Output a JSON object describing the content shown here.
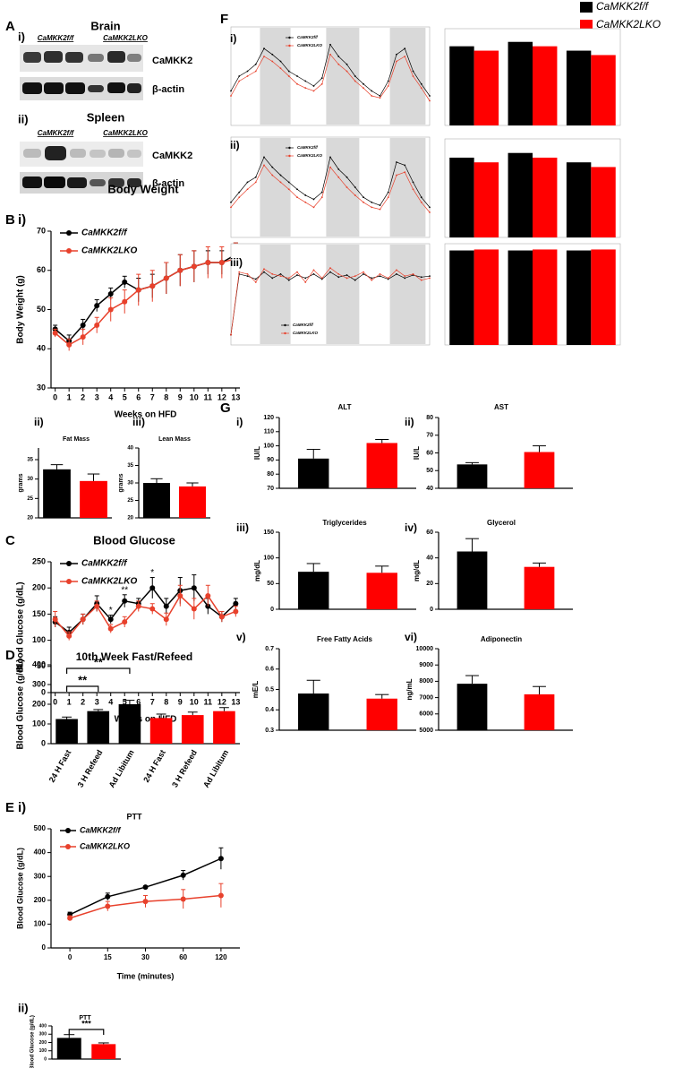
{
  "figure_labels": [
    "A",
    "B",
    "C",
    "D",
    "E",
    "F",
    "G"
  ],
  "figure_legend": [
    {
      "name": "CaMKK2f/f",
      "color": "#000000"
    },
    {
      "name": "CaMKK2LKO",
      "color": "#ff0000"
    }
  ],
  "blots": [
    {
      "panel": "i)",
      "title": "Brain",
      "groups": [
        "CaMKK2f/f",
        "CaMKK2LKO"
      ],
      "rows": [
        "CaMKK2",
        "β-actin"
      ]
    },
    {
      "panel": "ii)",
      "title": "Spleen",
      "groups": [
        "CaMKK2f/f",
        "CaMKK2LKO"
      ],
      "rows": [
        "CaMKK2",
        "β-actin"
      ]
    }
  ],
  "chart_data": [
    {
      "type": "line",
      "panel": "i)",
      "title": "Body Weight",
      "xlabel": "Weeks on HFD",
      "ylabel": "Body Weight (g)",
      "x": [
        0,
        1,
        2,
        3,
        4,
        5,
        6,
        7,
        8,
        9,
        10,
        11,
        12,
        13
      ],
      "xlim": [
        -0.3,
        13.3
      ],
      "xticks": [
        0,
        1,
        2,
        3,
        4,
        5,
        6,
        7,
        8,
        9,
        10,
        11,
        12,
        13
      ],
      "ylim": [
        30,
        70
      ],
      "yticks": [
        30,
        40,
        50,
        60,
        70
      ],
      "legend": "upper left",
      "series": [
        {
          "name": "CaMKK2f/f",
          "color": "#000000",
          "values": [
            45,
            42,
            46,
            51,
            54,
            57,
            55,
            56,
            58,
            60,
            61,
            62,
            62,
            64
          ],
          "errors": [
            1,
            1.5,
            1.5,
            1.5,
            1.5,
            1.5,
            3,
            3,
            4,
            4,
            4,
            3,
            3,
            3
          ]
        },
        {
          "name": "CaMKK2LKO",
          "color": "#e8412c",
          "values": [
            44,
            41,
            43,
            46,
            50,
            52,
            55,
            56,
            58,
            60,
            61,
            62,
            62,
            63
          ],
          "errors": [
            1,
            1.5,
            2,
            2,
            3,
            3,
            4,
            4,
            4,
            4,
            4,
            4,
            4,
            4
          ]
        }
      ]
    },
    {
      "type": "bar",
      "panel": "ii)",
      "title": "Fat Mass",
      "ylabel": "grams",
      "categories": [
        null,
        null
      ],
      "values": [
        32.5,
        29.5
      ],
      "errors": [
        1.2,
        1.8
      ],
      "colors": [
        "#000000",
        "#ff0000"
      ],
      "ylim": [
        20,
        38
      ],
      "yticks": [
        20,
        25,
        30,
        35
      ]
    },
    {
      "type": "bar",
      "panel": "iii)",
      "title": "Lean Mass",
      "ylabel": "grams",
      "categories": [
        null,
        null
      ],
      "values": [
        30,
        29
      ],
      "errors": [
        1.2,
        1
      ],
      "colors": [
        "#000000",
        "#ff0000"
      ],
      "ylim": [
        20,
        40
      ],
      "yticks": [
        20,
        25,
        30,
        35,
        40
      ]
    },
    {
      "type": "line",
      "title": "Blood Glucose",
      "xlabel": "Weeks on HFD",
      "ylabel": "Blood Glucose  (g/dL)",
      "x": [
        0,
        1,
        2,
        3,
        4,
        5,
        6,
        7,
        8,
        9,
        10,
        11,
        12,
        13
      ],
      "xlim": [
        -0.3,
        13.3
      ],
      "xticks": [
        0,
        1,
        2,
        3,
        4,
        5,
        6,
        7,
        8,
        9,
        10,
        11,
        12,
        13
      ],
      "ylim": [
        0,
        250
      ],
      "yticks": [
        0,
        50,
        100,
        150,
        200,
        250
      ],
      "legend": "upper left",
      "series": [
        {
          "name": "CaMKK2f/f",
          "color": "#000000",
          "values": [
            135,
            115,
            140,
            170,
            140,
            175,
            170,
            200,
            165,
            195,
            200,
            165,
            145,
            170
          ],
          "errors": [
            10,
            10,
            10,
            15,
            8,
            12,
            10,
            20,
            15,
            25,
            25,
            15,
            10,
            10
          ]
        },
        {
          "name": "CaMKK2LKO",
          "color": "#e8412c",
          "values": [
            140,
            108,
            140,
            165,
            122,
            135,
            165,
            160,
            140,
            185,
            160,
            185,
            145,
            155
          ],
          "errors": [
            15,
            8,
            10,
            10,
            8,
            10,
            10,
            10,
            12,
            20,
            20,
            20,
            10,
            10
          ]
        }
      ],
      "annotations": [
        {
          "text": "*",
          "x": 4
        },
        {
          "text": "**",
          "x": 5
        },
        {
          "text": "*",
          "x": 7
        }
      ]
    },
    {
      "type": "bar",
      "title": "10th Week Fast/Refeed",
      "ylabel": "Blood Glucose  (g/dL)",
      "categories": [
        "24 H Fast",
        "3 H Refeed",
        "Ad Libitum",
        "24 H Fast",
        "3 H Refeed",
        "Ad Libitum"
      ],
      "values": [
        125,
        165,
        200,
        130,
        145,
        165
      ],
      "errors": [
        10,
        8,
        20,
        20,
        15,
        18
      ],
      "colors": [
        "#000000",
        "#000000",
        "#000000",
        "#ff0000",
        "#ff0000",
        "#ff0000"
      ],
      "ylim": [
        0,
        400
      ],
      "yticks": [
        0,
        100,
        200,
        300,
        400
      ],
      "annotations": [
        {
          "text": "**",
          "from": 0,
          "to": 1
        },
        {
          "text": "**",
          "from": 0,
          "to": 2
        }
      ]
    },
    {
      "type": "line",
      "panel": "i)",
      "title": "PTT",
      "xlabel": "Time (minutes)",
      "ylabel": "Blood Glucose (g/dL)",
      "categories": [
        "0",
        "15",
        "30",
        "60",
        "120"
      ],
      "ylim": [
        0,
        500
      ],
      "yticks": [
        0,
        100,
        200,
        300,
        400,
        500
      ],
      "legend": "upper left",
      "series": [
        {
          "name": "CaMKK2f/f",
          "color": "#000000",
          "values": [
            140,
            215,
            255,
            305,
            375
          ],
          "errors": [
            10,
            15,
            5,
            20,
            45
          ]
        },
        {
          "name": "CaMKK2LKO",
          "color": "#e8412c",
          "values": [
            125,
            175,
            195,
            205,
            220
          ],
          "errors": [
            10,
            20,
            25,
            40,
            50
          ]
        }
      ]
    },
    {
      "type": "bar",
      "panel": "ii)",
      "title": "PTT",
      "ylabel": "Blood Glucose (g/dL)",
      "categories": [
        null,
        null
      ],
      "values": [
        255,
        180
      ],
      "errors": [
        40,
        15
      ],
      "colors": [
        "#000000",
        "#ff0000"
      ],
      "ylim": [
        0,
        400
      ],
      "yticks": [
        0,
        100,
        200,
        300,
        400
      ],
      "annotations": [
        {
          "text": "***",
          "from": 0,
          "to": 1
        }
      ]
    },
    {
      "type": "line",
      "panel": "i)",
      "x": [
        0,
        1,
        2,
        3,
        4,
        5,
        6,
        7,
        8,
        9,
        10,
        11,
        12,
        13,
        14,
        15,
        16,
        17,
        18,
        19,
        20,
        21,
        22,
        23,
        24
      ],
      "xlim": [
        0,
        24
      ],
      "ylim": [
        0,
        1
      ],
      "shaded": [
        [
          3.5,
          7.2
        ],
        [
          11.5,
          15.5
        ],
        [
          19.2,
          23.5
        ]
      ],
      "legend": "upper center",
      "series": [
        {
          "name": "CaMKK2f/f",
          "color": "#000000",
          "values": [
            0.35,
            0.5,
            0.55,
            0.62,
            0.78,
            0.72,
            0.65,
            0.55,
            0.5,
            0.45,
            0.4,
            0.48,
            0.82,
            0.7,
            0.62,
            0.5,
            0.42,
            0.35,
            0.3,
            0.45,
            0.72,
            0.78,
            0.55,
            0.42,
            0.3
          ]
        },
        {
          "name": "CaMKK2LKO",
          "color": "#e8412c",
          "values": [
            0.3,
            0.45,
            0.5,
            0.55,
            0.7,
            0.65,
            0.58,
            0.5,
            0.42,
            0.38,
            0.35,
            0.42,
            0.72,
            0.62,
            0.55,
            0.45,
            0.38,
            0.3,
            0.28,
            0.4,
            0.65,
            0.7,
            0.5,
            0.38,
            0.25
          ]
        }
      ]
    },
    {
      "type": "bar",
      "categories": [
        null,
        null,
        null
      ],
      "ylim": [
        0,
        1.1
      ],
      "series": [
        {
          "color": "#000000",
          "values": [
            0.9,
            0.95,
            0.85
          ]
        },
        {
          "color": "#ff0000",
          "values": [
            0.85,
            0.9,
            0.8
          ]
        }
      ]
    },
    {
      "type": "line",
      "panel": "ii)",
      "x": [
        0,
        1,
        2,
        3,
        4,
        5,
        6,
        7,
        8,
        9,
        10,
        11,
        12,
        13,
        14,
        15,
        16,
        17,
        18,
        19,
        20,
        21,
        22,
        23,
        24
      ],
      "xlim": [
        0,
        24
      ],
      "ylim": [
        0,
        1
      ],
      "shaded": [
        [
          3.5,
          7.2
        ],
        [
          11.5,
          15.5
        ],
        [
          19.2,
          23.5
        ]
      ],
      "legend": "upper center",
      "series": [
        {
          "name": "CaMKK2f/f",
          "color": "#000000",
          "values": [
            0.35,
            0.45,
            0.55,
            0.6,
            0.8,
            0.7,
            0.62,
            0.55,
            0.48,
            0.42,
            0.38,
            0.45,
            0.8,
            0.68,
            0.6,
            0.5,
            0.4,
            0.35,
            0.32,
            0.45,
            0.75,
            0.72,
            0.55,
            0.4,
            0.3
          ]
        },
        {
          "name": "CaMKK2LKO",
          "color": "#e8412c",
          "values": [
            0.3,
            0.4,
            0.48,
            0.55,
            0.72,
            0.62,
            0.55,
            0.48,
            0.4,
            0.35,
            0.3,
            0.4,
            0.7,
            0.6,
            0.5,
            0.42,
            0.35,
            0.3,
            0.28,
            0.4,
            0.62,
            0.65,
            0.48,
            0.35,
            0.25
          ]
        }
      ]
    },
    {
      "type": "bar",
      "categories": [
        null,
        null,
        null
      ],
      "ylim": [
        0,
        1.05
      ],
      "series": [
        {
          "color": "#000000",
          "values": [
            0.85,
            0.9,
            0.8
          ]
        },
        {
          "color": "#ff0000",
          "values": [
            0.8,
            0.85,
            0.75
          ]
        }
      ]
    },
    {
      "type": "line",
      "panel": "iii)",
      "x": [
        0,
        1,
        2,
        3,
        4,
        5,
        6,
        7,
        8,
        9,
        10,
        11,
        12,
        13,
        14,
        15,
        16,
        17,
        18,
        19,
        20,
        21,
        22,
        23,
        24
      ],
      "xlim": [
        0,
        24
      ],
      "ylim": [
        0,
        1
      ],
      "shaded": [
        [
          3.5,
          7.2
        ],
        [
          11.5,
          15.5
        ],
        [
          19.2,
          23.5
        ]
      ],
      "legend": "lower center",
      "series": [
        {
          "name": "CaMKK2f/f",
          "color": "#000000",
          "values": [
            0.1,
            0.7,
            0.68,
            0.65,
            0.72,
            0.66,
            0.7,
            0.64,
            0.69,
            0.66,
            0.7,
            0.65,
            0.72,
            0.67,
            0.69,
            0.64,
            0.7,
            0.66,
            0.68,
            0.65,
            0.7,
            0.66,
            0.69,
            0.67,
            0.68
          ]
        },
        {
          "name": "CaMKK2LKO",
          "color": "#e8412c",
          "values": [
            0.1,
            0.72,
            0.7,
            0.62,
            0.75,
            0.7,
            0.68,
            0.66,
            0.72,
            0.62,
            0.74,
            0.66,
            0.76,
            0.7,
            0.66,
            0.68,
            0.72,
            0.64,
            0.7,
            0.66,
            0.74,
            0.68,
            0.7,
            0.64,
            0.66
          ]
        }
      ]
    },
    {
      "type": "bar",
      "categories": [
        null,
        null,
        null
      ],
      "ylim": [
        0,
        1.05
      ],
      "series": [
        {
          "color": "#000000",
          "values": [
            0.98,
            0.98,
            0.98
          ]
        },
        {
          "color": "#ff0000",
          "values": [
            0.99,
            0.99,
            0.99
          ]
        }
      ]
    },
    {
      "type": "bar",
      "panel": "i)",
      "title": "ALT",
      "ylabel": "IU/L",
      "categories": [
        null,
        null
      ],
      "values": [
        91,
        102
      ],
      "errors": [
        6.5,
        2.5
      ],
      "colors": [
        "#000000",
        "#ff0000"
      ],
      "ylim": [
        70,
        120
      ],
      "yticks": [
        70,
        80,
        90,
        100,
        110,
        120
      ]
    },
    {
      "type": "bar",
      "panel": "ii)",
      "title": "AST",
      "ylabel": "IU/L",
      "categories": [
        null,
        null
      ],
      "values": [
        53.5,
        60.5
      ],
      "errors": [
        1,
        3.5
      ],
      "colors": [
        "#000000",
        "#ff0000"
      ],
      "ylim": [
        40,
        80
      ],
      "yticks": [
        40,
        50,
        60,
        70,
        80
      ]
    },
    {
      "type": "bar",
      "panel": "iii)",
      "title": "Triglycerides",
      "ylabel": "mg/dL",
      "categories": [
        null,
        null
      ],
      "values": [
        73,
        71
      ],
      "errors": [
        16,
        13
      ],
      "colors": [
        "#000000",
        "#ff0000"
      ],
      "ylim": [
        0,
        150
      ],
      "yticks": [
        0,
        50,
        100,
        150
      ]
    },
    {
      "type": "bar",
      "panel": "iv)",
      "title": "Glycerol",
      "ylabel": "mg/dL",
      "categories": [
        null,
        null
      ],
      "values": [
        45,
        33
      ],
      "errors": [
        10,
        3
      ],
      "colors": [
        "#000000",
        "#ff0000"
      ],
      "ylim": [
        0,
        60
      ],
      "yticks": [
        0,
        20,
        40,
        60
      ]
    },
    {
      "type": "bar",
      "panel": "v)",
      "title": "Free Fatty Acids",
      "ylabel": "mE/L",
      "categories": [
        null,
        null
      ],
      "values": [
        0.48,
        0.455
      ],
      "errors": [
        0.065,
        0.02
      ],
      "colors": [
        "#000000",
        "#ff0000"
      ],
      "ylim": [
        0.3,
        0.7
      ],
      "yticks": [
        0.3,
        0.4,
        0.5,
        0.6,
        0.7
      ]
    },
    {
      "type": "bar",
      "panel": "vi)",
      "title": "Adiponectin",
      "ylabel": "ng/mL",
      "categories": [
        null,
        null
      ],
      "values": [
        7850,
        7200
      ],
      "errors": [
        500,
        480
      ],
      "colors": [
        "#000000",
        "#ff0000"
      ],
      "ylim": [
        5000,
        10000
      ],
      "yticks": [
        5000,
        6000,
        7000,
        8000,
        9000,
        10000
      ]
    }
  ]
}
